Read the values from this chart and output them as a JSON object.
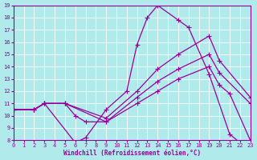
{
  "xlabel": "Windchill (Refroidissement éolien,°C)",
  "bg_color": "#b0eaea",
  "line_color": "#990099",
  "grid_color": "#ffffff",
  "xlim": [
    0,
    23
  ],
  "ylim": [
    8,
    19
  ],
  "xticks": [
    0,
    1,
    2,
    3,
    4,
    5,
    6,
    7,
    8,
    9,
    10,
    11,
    12,
    13,
    14,
    15,
    16,
    17,
    18,
    19,
    20,
    21,
    22,
    23
  ],
  "yticks": [
    8,
    9,
    10,
    11,
    12,
    13,
    14,
    15,
    16,
    17,
    18,
    19
  ],
  "line1_x": [
    0,
    2,
    3,
    6,
    7,
    9,
    11,
    12,
    13,
    14,
    16,
    17,
    19,
    21,
    22,
    23
  ],
  "line1_y": [
    10.5,
    10.5,
    11.0,
    7.8,
    8.2,
    10.5,
    12.0,
    15.8,
    18.0,
    19.0,
    17.8,
    17.2,
    13.4,
    8.5,
    7.8,
    7.8
  ],
  "line2_x": [
    0,
    2,
    3,
    5,
    9,
    12,
    14,
    16,
    19,
    20,
    23
  ],
  "line2_y": [
    10.5,
    10.5,
    11.0,
    11.0,
    9.8,
    12.0,
    13.8,
    15.0,
    16.5,
    14.5,
    11.5
  ],
  "line3_x": [
    0,
    2,
    3,
    5,
    9,
    12,
    14,
    16,
    19,
    20,
    23
  ],
  "line3_y": [
    10.5,
    10.5,
    11.0,
    11.0,
    9.5,
    11.5,
    12.8,
    13.8,
    15.0,
    13.5,
    11.0
  ],
  "line4_x": [
    0,
    2,
    3,
    5,
    6,
    7,
    9,
    12,
    14,
    16,
    19,
    20,
    21,
    23
  ],
  "line4_y": [
    10.5,
    10.5,
    11.0,
    11.0,
    10.0,
    9.5,
    9.5,
    11.0,
    12.0,
    13.0,
    14.0,
    12.5,
    11.8,
    8.0
  ]
}
